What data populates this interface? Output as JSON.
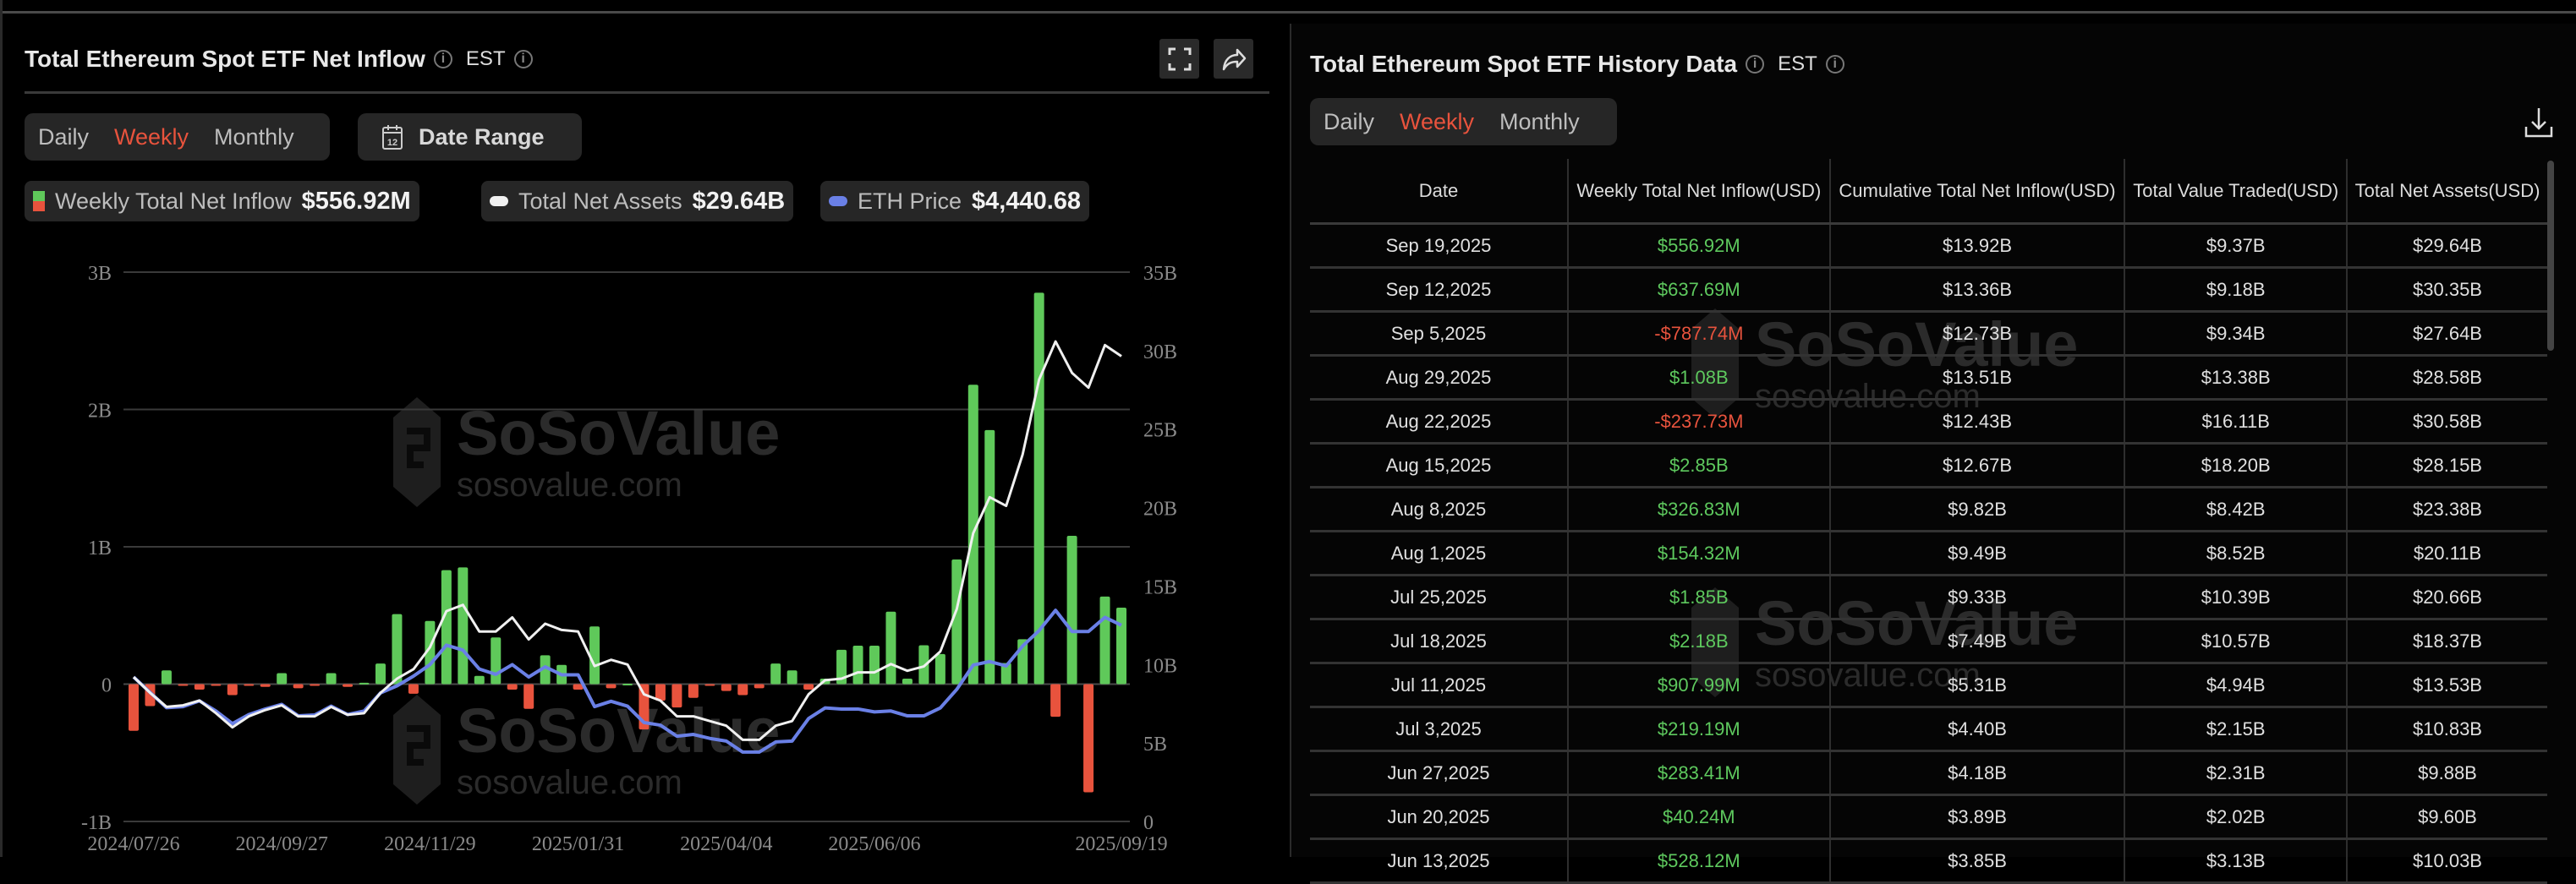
{
  "left": {
    "title": "Total Ethereum Spot ETF Net Inflow",
    "timezone": "EST",
    "tabs": [
      {
        "label": "Daily",
        "active": false
      },
      {
        "label": "Weekly",
        "active": true
      },
      {
        "label": "Monthly",
        "active": false
      }
    ],
    "date_range_label": "Date Range",
    "calendar_icon_text": "12",
    "legend": [
      {
        "label": "Weekly Total Net Inflow",
        "value": "$556.92M"
      },
      {
        "label": "Total Net Assets",
        "value": "$29.64B"
      },
      {
        "label": "ETH Price",
        "value": "$4,440.68"
      }
    ],
    "watermark": {
      "brand": "SoSoValue",
      "site": "sosovalue.com"
    }
  },
  "colors": {
    "positive": "#5fc95a",
    "negative": "#e8533d",
    "net_assets": "#f0f0f0",
    "eth_price": "#6a80e6",
    "accent": "#e8533d"
  },
  "chart_data": {
    "type": "bar+line",
    "title": "",
    "x_ticks": [
      "2024/07/26",
      "2024/09/27",
      "2024/11/29",
      "2025/01/31",
      "2025/04/04",
      "2025/06/06",
      "2025/09/19"
    ],
    "x_tick_week_index": [
      0,
      9,
      18,
      27,
      36,
      45,
      60
    ],
    "left_axis": {
      "ticks": [
        "3B",
        "2B",
        "1B",
        "0",
        "-1B"
      ],
      "tick_values": [
        3,
        2,
        1,
        0,
        -1
      ],
      "range": [
        -1,
        3
      ],
      "unit": "B USD"
    },
    "right_axis": {
      "ticks": [
        "35B",
        "30B",
        "25B",
        "20B",
        "15B",
        "10B",
        "5B",
        "0"
      ],
      "tick_values": [
        35,
        30,
        25,
        20,
        15,
        10,
        5,
        0
      ],
      "range": [
        0,
        35
      ],
      "unit": "B USD"
    },
    "grid": true,
    "series": [
      {
        "name": "Weekly Total Net Inflow",
        "type": "bar",
        "axis": "left",
        "unit": "B USD",
        "values": [
          -0.34,
          -0.16,
          0.1,
          -0.01,
          -0.04,
          -0.01,
          -0.08,
          -0.01,
          -0.02,
          0.08,
          -0.03,
          -0.005,
          0.08,
          -0.02,
          0.01,
          0.15,
          0.51,
          -0.07,
          0.46,
          0.83,
          0.85,
          0.06,
          0.34,
          -0.04,
          -0.18,
          0.21,
          0.14,
          -0.04,
          0.42,
          -0.03,
          0.003,
          -0.33,
          -0.12,
          -0.17,
          -0.1,
          -0.01,
          -0.05,
          -0.08,
          -0.03,
          0.15,
          0.1,
          -0.04,
          0.04,
          0.25,
          0.28,
          0.28,
          0.528,
          0.04,
          0.283,
          0.219,
          0.908,
          2.18,
          1.85,
          0.154,
          0.327,
          2.85,
          -0.238,
          1.08,
          -0.788,
          0.638,
          0.557
        ]
      },
      {
        "name": "Total Net Assets",
        "type": "line",
        "axis": "right",
        "unit": "B USD",
        "values": [
          9.2,
          8.2,
          7.3,
          7.4,
          7.7,
          6.9,
          6.0,
          6.7,
          7.1,
          7.4,
          6.7,
          6.7,
          7.3,
          6.8,
          6.9,
          8.2,
          9.1,
          9.7,
          11.1,
          13.4,
          13.8,
          12.1,
          12.1,
          13.0,
          11.6,
          12.6,
          12.2,
          12.1,
          9.9,
          10.3,
          10.0,
          8.1,
          7.7,
          6.7,
          6.7,
          6.4,
          6.1,
          5.2,
          5.2,
          6.1,
          6.4,
          8.1,
          9.0,
          9.1,
          9.5,
          9.5,
          10.03,
          9.6,
          9.88,
          10.83,
          13.53,
          18.37,
          20.66,
          20.11,
          23.38,
          28.15,
          30.58,
          28.58,
          27.64,
          30.35,
          29.64
        ]
      },
      {
        "name": "ETH Price",
        "type": "line",
        "axis": "hidden",
        "unit": "USD",
        "values": [
          3270,
          2920,
          2575,
          2600,
          2730,
          2500,
          2215,
          2420,
          2545,
          2650,
          2390,
          2410,
          2610,
          2420,
          2500,
          2910,
          3070,
          3290,
          3550,
          3990,
          3880,
          3450,
          3330,
          3550,
          3270,
          3500,
          3320,
          3320,
          2600,
          2720,
          2610,
          2240,
          2180,
          1930,
          1970,
          1880,
          1820,
          1570,
          1570,
          1800,
          1820,
          2330,
          2570,
          2545,
          2545,
          2480,
          2500,
          2390,
          2390,
          2570,
          2990,
          3540,
          3620,
          3520,
          3970,
          4320,
          4780,
          4300,
          4300,
          4620,
          4440.68
        ]
      }
    ]
  },
  "right": {
    "title": "Total Ethereum Spot ETF History Data",
    "timezone": "EST",
    "tabs": [
      {
        "label": "Daily",
        "active": false
      },
      {
        "label": "Weekly",
        "active": true
      },
      {
        "label": "Monthly",
        "active": false
      }
    ],
    "columns": [
      "Date",
      "Weekly Total Net Inflow(USD)",
      "Cumulative Total Net Inflow(USD)",
      "Total Value Traded(USD)",
      "Total Net Assets(USD)"
    ],
    "rows": [
      [
        "Sep 19,2025",
        "$556.92M",
        "$13.92B",
        "$9.37B",
        "$29.64B"
      ],
      [
        "Sep 12,2025",
        "$637.69M",
        "$13.36B",
        "$9.18B",
        "$30.35B"
      ],
      [
        "Sep 5,2025",
        "-$787.74M",
        "$12.73B",
        "$9.34B",
        "$27.64B"
      ],
      [
        "Aug 29,2025",
        "$1.08B",
        "$13.51B",
        "$13.38B",
        "$28.58B"
      ],
      [
        "Aug 22,2025",
        "-$237.73M",
        "$12.43B",
        "$16.11B",
        "$30.58B"
      ],
      [
        "Aug 15,2025",
        "$2.85B",
        "$12.67B",
        "$18.20B",
        "$28.15B"
      ],
      [
        "Aug 8,2025",
        "$326.83M",
        "$9.82B",
        "$8.42B",
        "$23.38B"
      ],
      [
        "Aug 1,2025",
        "$154.32M",
        "$9.49B",
        "$8.52B",
        "$20.11B"
      ],
      [
        "Jul 25,2025",
        "$1.85B",
        "$9.33B",
        "$10.39B",
        "$20.66B"
      ],
      [
        "Jul 18,2025",
        "$2.18B",
        "$7.49B",
        "$10.57B",
        "$18.37B"
      ],
      [
        "Jul 11,2025",
        "$907.99M",
        "$5.31B",
        "$4.94B",
        "$13.53B"
      ],
      [
        "Jul 3,2025",
        "$219.19M",
        "$4.40B",
        "$2.15B",
        "$10.83B"
      ],
      [
        "Jun 27,2025",
        "$283.41M",
        "$4.18B",
        "$2.31B",
        "$9.88B"
      ],
      [
        "Jun 20,2025",
        "$40.24M",
        "$3.89B",
        "$2.02B",
        "$9.60B"
      ],
      [
        "Jun 13,2025",
        "$528.12M",
        "$3.85B",
        "$3.13B",
        "$10.03B"
      ]
    ],
    "watermark": {
      "brand": "SoSoValue",
      "site": "sosovalue.com"
    }
  }
}
